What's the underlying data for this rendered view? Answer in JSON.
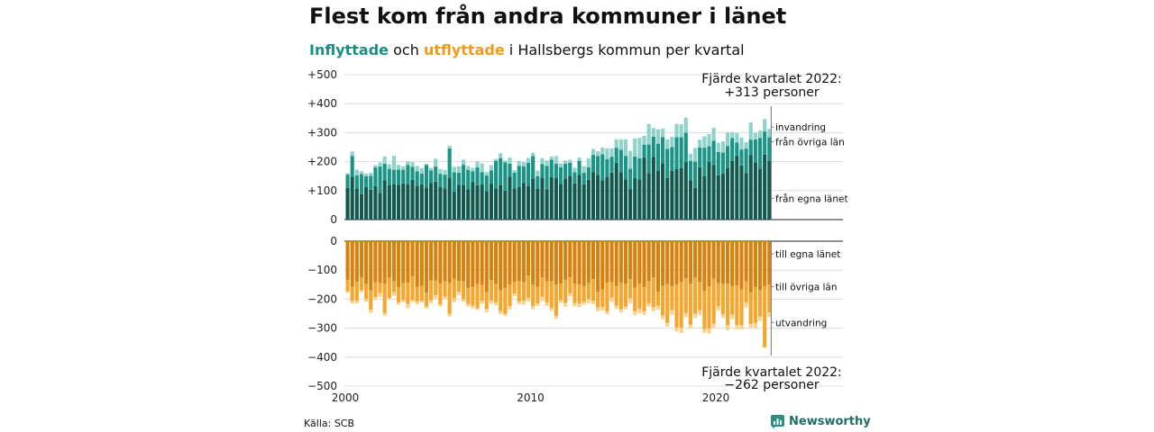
{
  "title": "Flest kom från andra kommuner i länet",
  "subtitle": {
    "in_word": "Inflyttade",
    "and": "och",
    "out_word": "utflyttade",
    "rest": "i Hallsbergs kommun per kvartal"
  },
  "source": "Källa: SCB",
  "brand": "Newsworthy",
  "colors": {
    "in_own": "#11584f",
    "in_other": "#1a9485",
    "in_immig": "#8fd3cb",
    "out_own": "#d7810e",
    "out_other": "#f5a62e",
    "out_emig": "#fbd28c"
  },
  "chart_data": {
    "type": "bar",
    "stacked": true,
    "x_ticks": [
      "2000",
      "2010",
      "2020"
    ],
    "y_ticks_top": [
      "+500",
      "+400",
      "+300",
      "+200",
      "+100",
      "0"
    ],
    "y_ticks_bottom": [
      "0",
      "−100",
      "−200",
      "−300",
      "−400",
      "−500"
    ],
    "ylim_top": [
      0,
      500
    ],
    "ylim_bottom": [
      -500,
      0
    ],
    "grid": true,
    "annotations": {
      "top_line1": "Fjärde kvartalet 2022:",
      "top_line2": "+313 personer",
      "bottom_line1": "Fjärde kvartalet 2022:",
      "bottom_line2": "−262 personer"
    },
    "series_labels": {
      "in_immig": "invandring",
      "in_other": "från övriga län",
      "in_own": "från egna länet",
      "out_own": "till egna länet",
      "out_other": "till övriga län",
      "out_emig": "utvandring"
    },
    "start_year": 2000,
    "quarters": 92,
    "series": {
      "in_own": [
        109,
        148,
        108,
        88,
        112,
        103,
        116,
        92,
        136,
        118,
        122,
        120,
        125,
        121,
        137,
        117,
        122,
        111,
        127,
        131,
        113,
        108,
        145,
        97,
        120,
        118,
        104,
        130,
        119,
        122,
        98,
        124,
        107,
        120,
        100,
        148,
        108,
        112,
        127,
        116,
        142,
        107,
        145,
        105,
        146,
        144,
        123,
        142,
        151,
        125,
        154,
        121,
        137,
        164,
        154,
        135,
        146,
        162,
        196,
        164,
        139,
        104,
        143,
        139,
        214,
        160,
        217,
        169,
        195,
        143,
        168,
        174,
        177,
        199,
        136,
        109,
        181,
        150,
        199,
        188,
        153,
        159,
        178,
        202,
        219,
        187,
        161,
        222,
        197,
        176,
        224,
        203
      ],
      "in_other": [
        46,
        72,
        45,
        69,
        38,
        48,
        64,
        91,
        57,
        57,
        50,
        53,
        47,
        67,
        45,
        50,
        37,
        77,
        43,
        52,
        45,
        47,
        101,
        66,
        42,
        71,
        68,
        37,
        61,
        42,
        54,
        46,
        96,
        92,
        98,
        45,
        54,
        73,
        57,
        80,
        77,
        43,
        47,
        80,
        61,
        49,
        58,
        51,
        45,
        38,
        49,
        41,
        43,
        59,
        65,
        90,
        63,
        55,
        52,
        77,
        81,
        72,
        75,
        73,
        45,
        99,
        69,
        93,
        90,
        101,
        82,
        110,
        107,
        101,
        67,
        91,
        68,
        98,
        54,
        84,
        80,
        72,
        76,
        79,
        47,
        55,
        84,
        54,
        80,
        106,
        80,
        81
      ],
      "in_immig": [
        5,
        15,
        19,
        10,
        9,
        11,
        8,
        14,
        25,
        16,
        48,
        16,
        12,
        13,
        16,
        18,
        19,
        5,
        8,
        27,
        17,
        16,
        9,
        19,
        22,
        18,
        13,
        12,
        21,
        30,
        12,
        18,
        6,
        17,
        6,
        21,
        8,
        17,
        14,
        17,
        12,
        19,
        20,
        19,
        11,
        26,
        13,
        11,
        11,
        16,
        11,
        23,
        32,
        21,
        17,
        24,
        37,
        29,
        29,
        36,
        57,
        61,
        62,
        70,
        30,
        71,
        30,
        50,
        29,
        33,
        36,
        46,
        45,
        52,
        24,
        47,
        27,
        39,
        42,
        45,
        32,
        39,
        47,
        21,
        33,
        41,
        22,
        59,
        23,
        25,
        43,
        29
      ],
      "out_own": [
        -134,
        -157,
        -140,
        -124,
        -148,
        -169,
        -142,
        -144,
        -147,
        -126,
        -139,
        -157,
        -145,
        -144,
        -121,
        -158,
        -154,
        -178,
        -135,
        -136,
        -146,
        -139,
        -145,
        -129,
        -137,
        -139,
        -161,
        -158,
        -148,
        -151,
        -176,
        -134,
        -147,
        -169,
        -160,
        -151,
        -140,
        -138,
        -142,
        -119,
        -150,
        -157,
        -125,
        -139,
        -139,
        -149,
        -147,
        -132,
        -125,
        -146,
        -149,
        -155,
        -145,
        -131,
        -175,
        -166,
        -143,
        -141,
        -154,
        -144,
        -146,
        -131,
        -160,
        -146,
        -159,
        -138,
        -125,
        -175,
        -154,
        -148,
        -156,
        -149,
        -141,
        -128,
        -146,
        -125,
        -141,
        -171,
        -156,
        -129,
        -145,
        -147,
        -146,
        -155,
        -153,
        -167,
        -139,
        -178,
        -158,
        -170,
        -156,
        -149
      ],
      "out_other": [
        -39,
        -49,
        -66,
        -46,
        -52,
        -68,
        -51,
        -35,
        -101,
        -70,
        -37,
        -55,
        -59,
        -73,
        -82,
        -51,
        -51,
        -47,
        -69,
        -50,
        -72,
        -53,
        -106,
        -69,
        -38,
        -62,
        -55,
        -64,
        -83,
        -55,
        -58,
        -71,
        -65,
        -72,
        -91,
        -73,
        -41,
        -71,
        -64,
        -77,
        -74,
        -58,
        -67,
        -73,
        -92,
        -109,
        -57,
        -81,
        -55,
        -67,
        -66,
        -55,
        -55,
        -75,
        -54,
        -61,
        -99,
        -54,
        -68,
        -91,
        -80,
        -66,
        -82,
        -87,
        -83,
        -76,
        -103,
        -48,
        -103,
        -133,
        -82,
        -150,
        -158,
        -120,
        -142,
        -125,
        -97,
        -132,
        -146,
        -155,
        -80,
        -105,
        -143,
        -98,
        -136,
        -123,
        -73,
        -108,
        -123,
        -90,
        -210,
        -97
      ],
      "out_emig": [
        -6,
        -9,
        -9,
        -6,
        -8,
        -10,
        -10,
        -13,
        -9,
        -6,
        -12,
        -7,
        -6,
        -14,
        -6,
        -9,
        -7,
        -8,
        -10,
        -12,
        -8,
        -7,
        -9,
        -12,
        -11,
        -8,
        -9,
        -10,
        -6,
        -10,
        -12,
        -11,
        -9,
        -10,
        -7,
        -11,
        -9,
        -8,
        -13,
        -12,
        -11,
        -8,
        -14,
        -12,
        -10,
        -10,
        -9,
        -13,
        -11,
        -12,
        -13,
        -9,
        -14,
        -11,
        -13,
        -12,
        -10,
        -14,
        -12,
        -11,
        -9,
        -17,
        -13,
        -15,
        -12,
        -11,
        -14,
        -13,
        -12,
        -14,
        -16,
        -13,
        -18,
        -15,
        -12,
        -14,
        -16,
        -13,
        -17,
        -15,
        -14,
        -13,
        -18,
        -16,
        -15,
        -14,
        -17,
        -13,
        -19,
        -16,
        -2,
        -16
      ]
    }
  }
}
